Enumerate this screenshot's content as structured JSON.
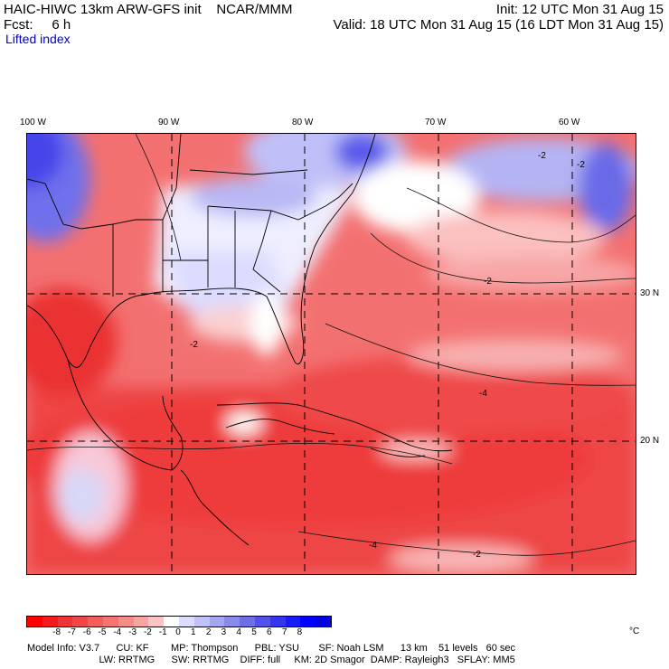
{
  "header": {
    "model_title": "HAIC-HIWC 13km ARW-GFS init",
    "org": "NCAR/MMM",
    "init": "Init: 12 UTC Mon 31 Aug 15",
    "fcst": "Fcst:     6 h",
    "valid": "Valid: 18 UTC Mon 31 Aug 15 (16 LDT Mon 31 Aug 15)",
    "field": "Lifted index"
  },
  "map": {
    "lon_labels": [
      "100 W",
      "90 W",
      "80 W",
      "70 W",
      "60 W"
    ],
    "lat_labels": [
      "30 N",
      "20 N"
    ],
    "contour_labels": [
      "-2",
      "-2",
      "-2",
      "-4",
      "-4",
      "-2",
      "-2"
    ],
    "palette_note": "red = negative lifted index (unstable), blue = positive (stable)"
  },
  "colorbar": {
    "tick_labels": [
      "-8",
      "-7",
      "-6",
      "-5",
      "-4",
      "-3",
      "-2",
      "-1",
      "0",
      "1",
      "2",
      "3",
      "4",
      "5",
      "6",
      "7",
      "8"
    ],
    "units": "°C",
    "colors": [
      "#ff0000",
      "#f41b1b",
      "#ee3535",
      "#f04848",
      "#f25e5e",
      "#f47474",
      "#f68b8b",
      "#f9a4a4",
      "#fcc4c4",
      "#ffffff",
      "#dcdcff",
      "#c0c0fa",
      "#a5a5f2",
      "#8a8aec",
      "#6e6ee6",
      "#5252e8",
      "#3535ee",
      "#1b1bf6",
      "#0000ff",
      "#0000e0"
    ]
  },
  "info": {
    "line1": "Model Info: V3.7      CU: KF        MP: Thompson      PBL: YSU       SF: Noah LSM      13 km    51 levels   60 sec",
    "line2": "                          LW: RRTMG      SW: RRTMG    DIFF: full     KM: 2D Smagor  DAMP: Rayleigh3   SFLAY: MM5"
  }
}
